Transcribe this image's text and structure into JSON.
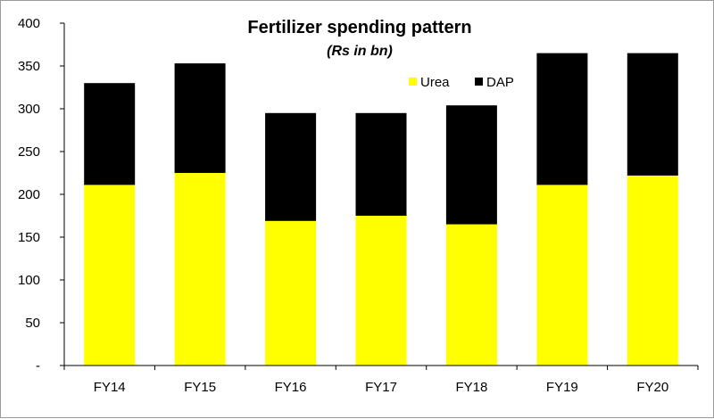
{
  "chart_data": {
    "type": "bar",
    "stacked": true,
    "title": "Fertilizer spending pattern",
    "subtitle": "(Rs  in bn)",
    "categories": [
      "FY14",
      "FY15",
      "FY16",
      "FY17",
      "FY18",
      "FY19",
      "FY20"
    ],
    "series": [
      {
        "name": "Urea",
        "color": "#ffff00",
        "values": [
          211,
          225,
          169,
          175,
          165,
          211,
          222
        ]
      },
      {
        "name": "DAP",
        "color": "#000000",
        "values": [
          119,
          128,
          126,
          120,
          139,
          154,
          143
        ]
      }
    ],
    "ylim": [
      0,
      400
    ],
    "yticks": [
      0,
      50,
      100,
      150,
      200,
      250,
      300,
      350,
      400
    ],
    "ytick_labels": [
      "-",
      "50",
      "100",
      "150",
      "200",
      "250",
      "300",
      "350",
      "400"
    ],
    "xlabel": "",
    "ylabel": "",
    "grid": false,
    "legend": "top-right"
  }
}
